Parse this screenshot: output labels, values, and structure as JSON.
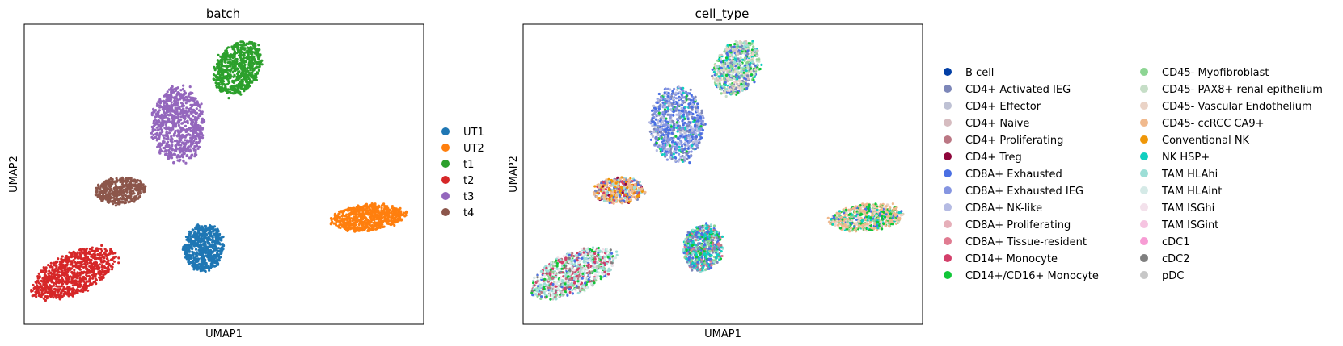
{
  "chart_data": [
    {
      "type": "scatter",
      "title": "batch",
      "xlabel": "UMAP1",
      "ylabel": "UMAP2",
      "grid": false,
      "legend_position": "right",
      "xlim": [
        0,
        100
      ],
      "ylim": [
        0,
        100
      ],
      "series": [
        {
          "name": "UT1",
          "color": "#1f77b4",
          "n": 600,
          "clusters": [
            {
              "cx": 45.0,
              "cy": 25.5,
              "rx": 5.2,
              "ry": 8.0,
              "rot": -5
            }
          ]
        },
        {
          "name": "UT2",
          "color": "#ff7f0e",
          "n": 650,
          "clusters": [
            {
              "cx": 86.0,
              "cy": 35.5,
              "rx": 9.5,
              "ry": 4.5,
              "rot": 8
            }
          ]
        },
        {
          "name": "t1",
          "color": "#2ca02c",
          "n": 650,
          "clusters": [
            {
              "cx": 53.5,
              "cy": 85.5,
              "rx": 5.8,
              "ry": 9.5,
              "rot": -15
            }
          ]
        },
        {
          "name": "t2",
          "color": "#d62728",
          "n": 800,
          "clusters": [
            {
              "cx": 12.5,
              "cy": 17.0,
              "rx": 6.5,
              "ry": 12.5,
              "rot": -55
            }
          ]
        },
        {
          "name": "t3",
          "color": "#9467bd",
          "n": 800,
          "clusters": [
            {
              "cx": 38.5,
              "cy": 66.5,
              "rx": 6.8,
              "ry": 13.0,
              "rot": 0
            }
          ]
        },
        {
          "name": "t4",
          "color": "#8c564b",
          "n": 420,
          "clusters": [
            {
              "cx": 24.0,
              "cy": 44.5,
              "rx": 6.5,
              "ry": 4.5,
              "rot": 8
            }
          ]
        }
      ]
    },
    {
      "type": "scatter",
      "title": "cell_type",
      "xlabel": "UMAP1",
      "ylabel": "UMAP2",
      "grid": false,
      "legend_position": "right",
      "legend_columns": 2,
      "xlim": [
        0,
        100
      ],
      "ylim": [
        0,
        100
      ],
      "clusters": [
        {
          "cx": 53.5,
          "cy": 85.5,
          "rx": 5.8,
          "ry": 9.5,
          "rot": -15,
          "n": 650,
          "mix": [
            [
              "CD45- Myofibroblast",
              2
            ],
            [
              "CD45- PAX8+ renal epithelium",
              2
            ],
            [
              "CD45- Vascular Endothelium",
              2
            ],
            [
              "CD4+ Activated IEG",
              1
            ],
            [
              "CD8A+ Exhausted",
              1
            ],
            [
              "CD14+/CD16+ Monocyte",
              1
            ],
            [
              "TAM HLAhi",
              1
            ],
            [
              "CD4+ Naive",
              1
            ],
            [
              "NK HSP+",
              1
            ]
          ]
        },
        {
          "cx": 38.5,
          "cy": 66.5,
          "rx": 6.8,
          "ry": 13.0,
          "rot": 0,
          "n": 800,
          "mix": [
            [
              "CD8A+ Exhausted",
              4
            ],
            [
              "CD8A+ Exhausted IEG",
              3
            ],
            [
              "CD4+ Activated IEG",
              2
            ],
            [
              "CD8A+ NK-like",
              2
            ],
            [
              "CD4+ Effector",
              1
            ],
            [
              "NK HSP+",
              1
            ],
            [
              "CD14+/CD16+ Monocyte",
              0.5
            ]
          ]
        },
        {
          "cx": 24.0,
          "cy": 44.5,
          "rx": 6.5,
          "ry": 4.5,
          "rot": 8,
          "n": 420,
          "mix": [
            [
              "CD45- ccRCC CA9+",
              3
            ],
            [
              "Conventional NK",
              2
            ],
            [
              "CD8A+ Exhausted",
              1
            ],
            [
              "CD14+ Monocyte",
              1
            ],
            [
              "CD4+ Activated IEG",
              1
            ],
            [
              "TAM HLAhi",
              1
            ],
            [
              "CD4+ Treg",
              0.5
            ]
          ]
        },
        {
          "cx": 45.0,
          "cy": 25.5,
          "rx": 5.2,
          "ry": 8.0,
          "rot": -5,
          "n": 600,
          "mix": [
            [
              "NK HSP+",
              2
            ],
            [
              "CD8A+ Exhausted",
              2
            ],
            [
              "CD14+/CD16+ Monocyte",
              1
            ],
            [
              "CD4+ Activated IEG",
              1
            ],
            [
              "CD8A+ Tissue-resident",
              1
            ],
            [
              "TAM HLAhi",
              1
            ],
            [
              "CD45- Myofibroblast",
              1
            ],
            [
              "CD4+ Proliferating",
              0.5
            ]
          ]
        },
        {
          "cx": 86.0,
          "cy": 35.5,
          "rx": 9.5,
          "ry": 4.5,
          "rot": 8,
          "n": 650,
          "mix": [
            [
              "CD45- ccRCC CA9+",
              4
            ],
            [
              "CD45- Vascular Endothelium",
              2
            ],
            [
              "CD14+/CD16+ Monocyte",
              2
            ],
            [
              "CD8A+ Exhausted",
              1
            ],
            [
              "NK HSP+",
              1
            ],
            [
              "CD45- Myofibroblast",
              1
            ]
          ]
        },
        {
          "cx": 12.5,
          "cy": 17.0,
          "rx": 6.5,
          "ry": 12.5,
          "rot": -55,
          "n": 800,
          "mix": [
            [
              "TAM HLAhi",
              3
            ],
            [
              "TAM HLAint",
              2
            ],
            [
              "CD14+ Monocyte",
              2
            ],
            [
              "CD8A+ Exhausted",
              1
            ],
            [
              "CD4+ Proliferating",
              1
            ],
            [
              "CD14+/CD16+ Monocyte",
              1
            ],
            [
              "CD45- Myofibroblast",
              1
            ],
            [
              "TAM ISGhi",
              1
            ],
            [
              "cDC2",
              0.5
            ],
            [
              "pDC",
              0.5
            ]
          ]
        }
      ],
      "categories": [
        {
          "name": "B cell",
          "color": "#023fa5"
        },
        {
          "name": "CD4+ Activated IEG",
          "color": "#7d87b9"
        },
        {
          "name": "CD4+ Effector",
          "color": "#bec1d4"
        },
        {
          "name": "CD4+ Naive",
          "color": "#d6bcc0"
        },
        {
          "name": "CD4+ Proliferating",
          "color": "#bb7784"
        },
        {
          "name": "CD4+ Treg",
          "color": "#8e063b"
        },
        {
          "name": "CD8A+ Exhausted",
          "color": "#4a6fe3"
        },
        {
          "name": "CD8A+ Exhausted IEG",
          "color": "#8595e1"
        },
        {
          "name": "CD8A+ NK-like",
          "color": "#b5bbe3"
        },
        {
          "name": "CD8A+ Proliferating",
          "color": "#e6afb9"
        },
        {
          "name": "CD8A+ Tissue-resident",
          "color": "#e07b91"
        },
        {
          "name": "CD14+ Monocyte",
          "color": "#d33f6a"
        },
        {
          "name": "CD14+/CD16+ Monocyte",
          "color": "#11c638"
        },
        {
          "name": "CD45- Myofibroblast",
          "color": "#8dd593"
        },
        {
          "name": "CD45- PAX8+ renal epithelium",
          "color": "#c6dec7"
        },
        {
          "name": "CD45- Vascular Endothelium",
          "color": "#ead3c6"
        },
        {
          "name": "CD45- ccRCC CA9+",
          "color": "#f0b98d"
        },
        {
          "name": "Conventional NK",
          "color": "#ef9708"
        },
        {
          "name": "NK HSP+",
          "color": "#0fcfc0"
        },
        {
          "name": "TAM HLAhi",
          "color": "#9cded6"
        },
        {
          "name": "TAM HLAint",
          "color": "#d5eae7"
        },
        {
          "name": "TAM ISGhi",
          "color": "#f3e1eb"
        },
        {
          "name": "TAM ISGint",
          "color": "#f6c4e1"
        },
        {
          "name": "cDC1",
          "color": "#f79cd4"
        },
        {
          "name": "cDC2",
          "color": "#7f7f7f"
        },
        {
          "name": "pDC",
          "color": "#c7c7c7"
        }
      ]
    }
  ]
}
